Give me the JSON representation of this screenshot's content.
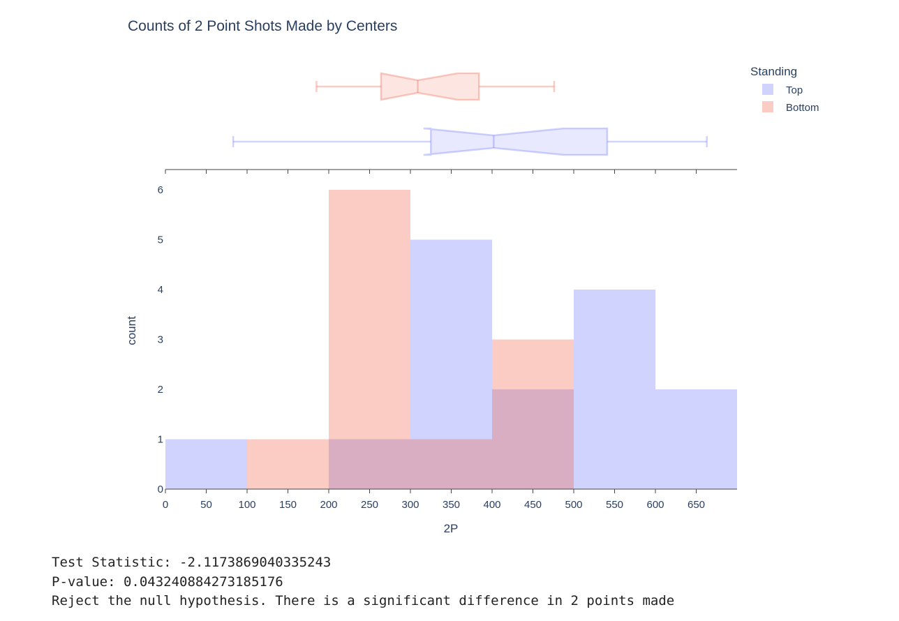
{
  "chart_data": {
    "type": "histogram",
    "title": "Counts of 2 Point Shots Made by Centers",
    "xlabel": "2P",
    "ylabel": "count",
    "xlim": [
      0,
      700
    ],
    "ylim": [
      0,
      6
    ],
    "x_ticks": [
      0,
      50,
      100,
      150,
      200,
      250,
      300,
      350,
      400,
      450,
      500,
      550,
      600,
      650
    ],
    "y_ticks": [
      0,
      1,
      2,
      3,
      4,
      5,
      6
    ],
    "bin_edges": [
      0,
      100,
      200,
      300,
      400,
      500,
      600,
      700
    ],
    "grid": false,
    "legend_title": "Standing",
    "legend_position": "top-right",
    "series": [
      {
        "name": "Top",
        "color": "#636efa",
        "counts": [
          1,
          0,
          1,
          5,
          2,
          4,
          2
        ],
        "box": {
          "lower_fence": 83,
          "q1": 325,
          "median": 402,
          "q3": 541,
          "upper_fence": 663,
          "notch_low": 316,
          "notch_high": 488
        }
      },
      {
        "name": "Bottom",
        "color": "#ef553b",
        "counts": [
          0,
          1,
          6,
          1,
          3,
          0,
          0
        ],
        "box": {
          "lower_fence": 185,
          "q1": 264,
          "median": 309,
          "q3": 384,
          "upper_fence": 476,
          "notch_low": 264,
          "notch_high": 358
        }
      }
    ]
  },
  "console": {
    "line1": "Test Statistic: -2.1173869040335243",
    "line2": "P-value: 0.043240884273185176",
    "line3": "Reject the null hypothesis. There is a significant difference in 2 points made"
  }
}
